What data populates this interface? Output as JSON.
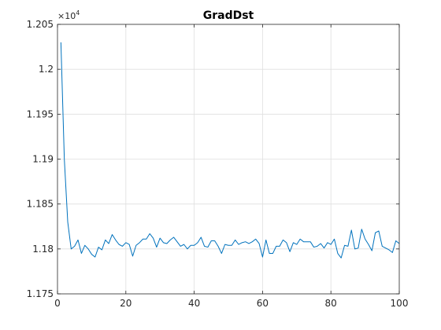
{
  "chart_data": {
    "type": "line",
    "title": "GradDst",
    "xlabel": "",
    "ylabel": "",
    "xlim": [
      0,
      100
    ],
    "ylim": [
      11750,
      12050
    ],
    "grid": true,
    "legend": "none",
    "x_ticks": [
      "0",
      "20",
      "40",
      "60",
      "80",
      "100"
    ],
    "y_ticks": [
      "1.175",
      "1.18",
      "1.185",
      "1.19",
      "1.195",
      "1.2",
      "1.205"
    ],
    "y_multiplier": {
      "base": "×10",
      "exponent": "4"
    },
    "series": [
      {
        "color": "#0072BD",
        "x": [
          1,
          2,
          3,
          4,
          5,
          6,
          7,
          8,
          9,
          10,
          11,
          12,
          13,
          14,
          15,
          16,
          17,
          18,
          19,
          20,
          21,
          22,
          23,
          24,
          25,
          26,
          27,
          28,
          29,
          30,
          31,
          32,
          33,
          34,
          35,
          36,
          37,
          38,
          39,
          40,
          41,
          42,
          43,
          44,
          45,
          46,
          47,
          48,
          49,
          50,
          51,
          52,
          53,
          54,
          55,
          56,
          57,
          58,
          59,
          60,
          61,
          62,
          63,
          64,
          65,
          66,
          67,
          68,
          69,
          70,
          71,
          72,
          73,
          74,
          75,
          76,
          77,
          78,
          79,
          80,
          81,
          82,
          83,
          84,
          85,
          86,
          87,
          88,
          89,
          90,
          91,
          92,
          93,
          94,
          95,
          96,
          97,
          98,
          99,
          100
        ],
        "values": [
          12030,
          11900,
          11830,
          11800,
          11803,
          11810,
          11795,
          11804,
          11800,
          11794,
          11791,
          11802,
          11799,
          11810,
          11806,
          11816,
          11810,
          11805,
          11803,
          11807,
          11805,
          11792,
          11804,
          11807,
          11811,
          11811,
          11817,
          11812,
          11802,
          11812,
          11807,
          11806,
          11810,
          11813,
          11808,
          11803,
          11805,
          11800,
          11804,
          11804,
          11807,
          11813,
          11803,
          11802,
          11809,
          11809,
          11803,
          11795,
          11805,
          11804,
          11804,
          11810,
          11805,
          11807,
          11808,
          11806,
          11808,
          11811,
          11806,
          11791,
          11810,
          11795,
          11795,
          11803,
          11803,
          11810,
          11807,
          11797,
          11807,
          11805,
          11811,
          11808,
          11808,
          11808,
          11802,
          11803,
          11806,
          11801,
          11807,
          11805,
          11811,
          11795,
          11790,
          11804,
          11803,
          11821,
          11800,
          11801,
          11822,
          11811,
          11805,
          11798,
          11818,
          11820,
          11803,
          11801,
          11799,
          11796,
          11809,
          11806
        ]
      }
    ]
  }
}
